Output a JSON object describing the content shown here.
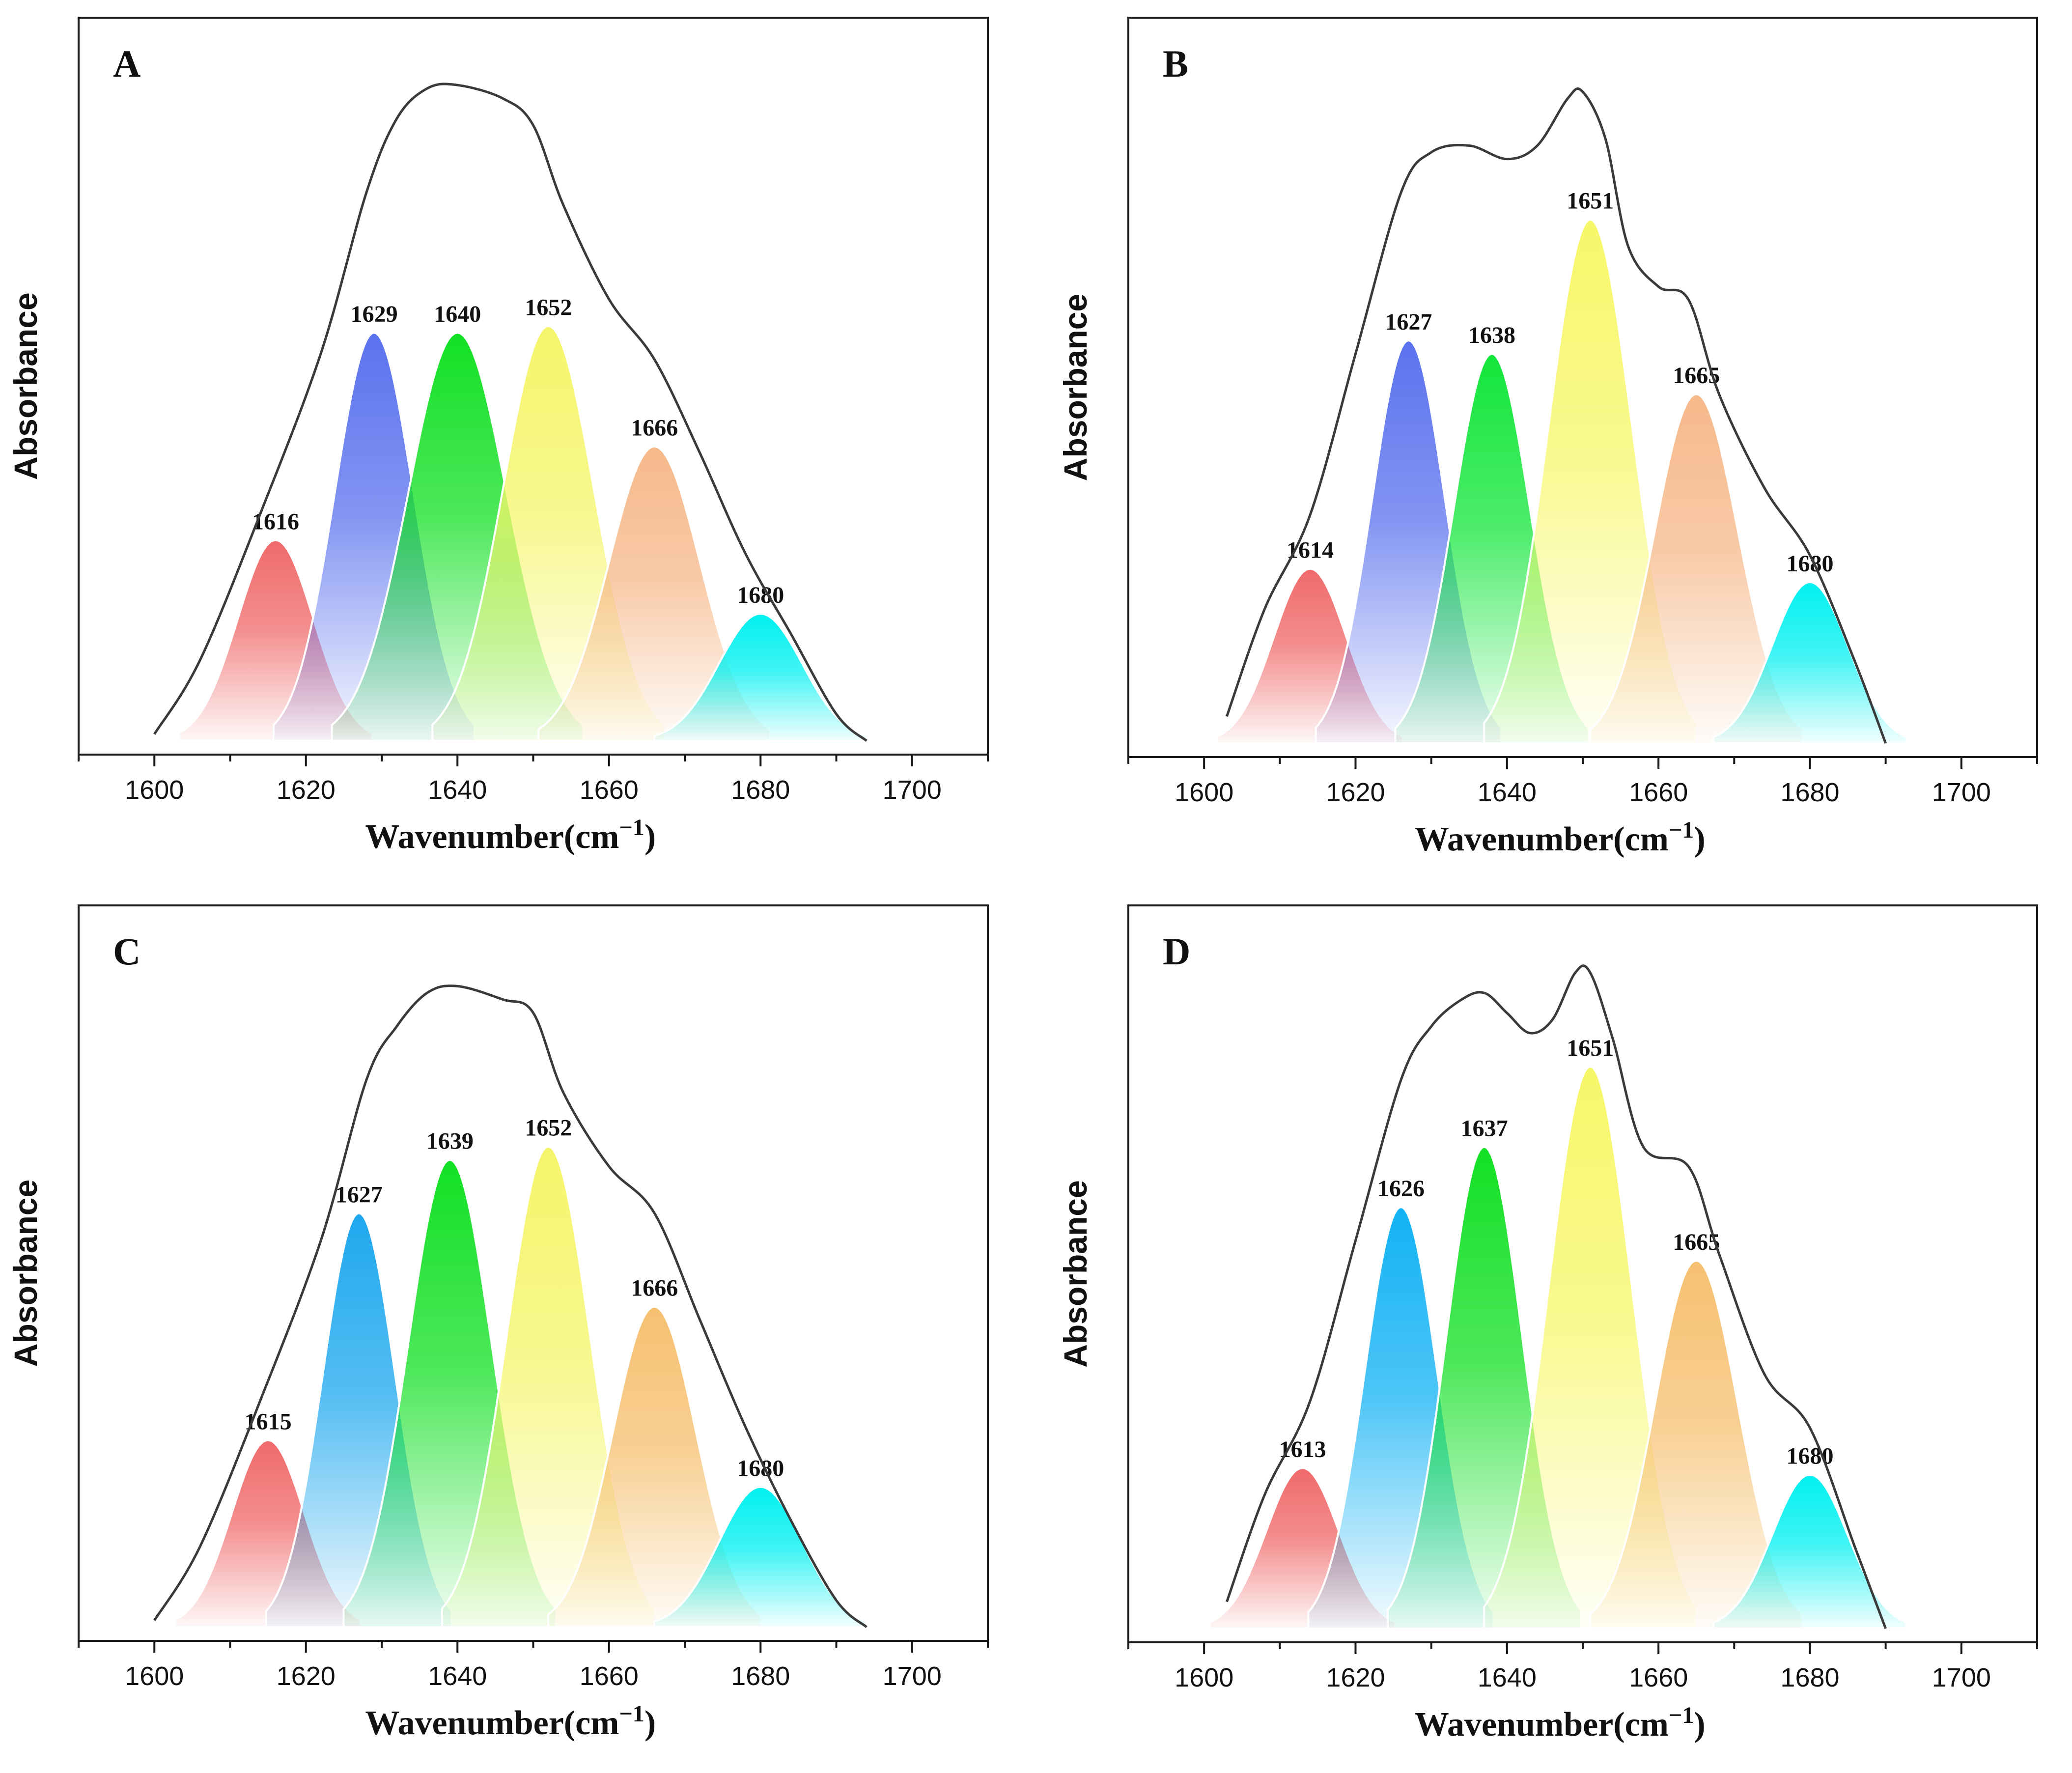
{
  "figure": {
    "xlabel": "Wavenumber(cm",
    "xlabel_sup": "−1",
    "xlabel_close": ")",
    "ylabel": "Absorbance"
  },
  "chart_data": [
    {
      "type": "area",
      "panel": "A",
      "xlabel": "Wavenumber(cm⁻¹)",
      "ylabel": "Absorbance",
      "xlim": [
        1590,
        1710
      ],
      "xticks": [
        1600,
        1620,
        1640,
        1660,
        1680,
        1700
      ],
      "ylim": [
        0,
        1.0
      ],
      "envelope": [
        [
          1600,
          0.01
        ],
        [
          1606,
          0.12
        ],
        [
          1614,
          0.34
        ],
        [
          1622,
          0.58
        ],
        [
          1628,
          0.82
        ],
        [
          1632,
          0.93
        ],
        [
          1636,
          0.975
        ],
        [
          1640,
          0.98
        ],
        [
          1646,
          0.96
        ],
        [
          1650,
          0.92
        ],
        [
          1654,
          0.8
        ],
        [
          1660,
          0.66
        ],
        [
          1666,
          0.57
        ],
        [
          1672,
          0.43
        ],
        [
          1678,
          0.28
        ],
        [
          1684,
          0.16
        ],
        [
          1690,
          0.04
        ],
        [
          1694,
          0.0
        ]
      ],
      "bands": [
        {
          "label": "1616",
          "center": 1616,
          "height": 0.3,
          "width": 5.0,
          "color": "#f06a6a"
        },
        {
          "label": "1629",
          "center": 1629,
          "height": 0.61,
          "width": 5.2,
          "color": "#5a72ee"
        },
        {
          "label": "1640",
          "center": 1640,
          "height": 0.61,
          "width": 6.5,
          "color": "#12e024"
        },
        {
          "label": "1652",
          "center": 1652,
          "height": 0.62,
          "width": 6.0,
          "color": "#f5f56a"
        },
        {
          "label": "1666",
          "center": 1666,
          "height": 0.44,
          "width": 6.0,
          "color": "#f6b98a"
        },
        {
          "label": "1680",
          "center": 1680,
          "height": 0.19,
          "width": 5.5,
          "color": "#00f0f0"
        }
      ]
    },
    {
      "type": "area",
      "panel": "B",
      "xlabel": "Wavenumber(cm⁻¹)",
      "ylabel": "Absorbance",
      "xlim": [
        1590,
        1710
      ],
      "xticks": [
        1600,
        1620,
        1640,
        1660,
        1680,
        1700
      ],
      "ylim": [
        0,
        1.0
      ],
      "envelope": [
        [
          1603,
          0.04
        ],
        [
          1608,
          0.2
        ],
        [
          1614,
          0.34
        ],
        [
          1620,
          0.58
        ],
        [
          1626,
          0.82
        ],
        [
          1630,
          0.88
        ],
        [
          1635,
          0.89
        ],
        [
          1640,
          0.87
        ],
        [
          1644,
          0.89
        ],
        [
          1648,
          0.96
        ],
        [
          1650,
          0.97
        ],
        [
          1653,
          0.9
        ],
        [
          1656,
          0.74
        ],
        [
          1660,
          0.68
        ],
        [
          1664,
          0.66
        ],
        [
          1668,
          0.52
        ],
        [
          1674,
          0.38
        ],
        [
          1680,
          0.28
        ],
        [
          1686,
          0.12
        ],
        [
          1690,
          0.0
        ]
      ],
      "bands": [
        {
          "label": "1614",
          "center": 1614,
          "height": 0.26,
          "width": 4.8,
          "color": "#f06a6a"
        },
        {
          "label": "1627",
          "center": 1627,
          "height": 0.6,
          "width": 4.8,
          "color": "#5a72ee"
        },
        {
          "label": "1638",
          "center": 1638,
          "height": 0.58,
          "width": 5.0,
          "color": "#12e63a"
        },
        {
          "label": "1651",
          "center": 1651,
          "height": 0.78,
          "width": 5.5,
          "color": "#f7f76a"
        },
        {
          "label": "1665",
          "center": 1665,
          "height": 0.52,
          "width": 5.5,
          "color": "#f6b98a"
        },
        {
          "label": "1680",
          "center": 1680,
          "height": 0.24,
          "width": 5.0,
          "color": "#00f0f0"
        }
      ]
    },
    {
      "type": "area",
      "panel": "C",
      "xlabel": "Wavenumber(cm⁻¹)",
      "ylabel": "Absorbance",
      "xlim": [
        1590,
        1710
      ],
      "xticks": [
        1600,
        1620,
        1640,
        1660,
        1680,
        1700
      ],
      "ylim": [
        0,
        1.0
      ],
      "envelope": [
        [
          1600,
          0.01
        ],
        [
          1606,
          0.12
        ],
        [
          1614,
          0.34
        ],
        [
          1622,
          0.58
        ],
        [
          1628,
          0.82
        ],
        [
          1632,
          0.9
        ],
        [
          1636,
          0.95
        ],
        [
          1640,
          0.96
        ],
        [
          1646,
          0.94
        ],
        [
          1650,
          0.92
        ],
        [
          1654,
          0.8
        ],
        [
          1660,
          0.69
        ],
        [
          1666,
          0.62
        ],
        [
          1672,
          0.46
        ],
        [
          1678,
          0.3
        ],
        [
          1684,
          0.16
        ],
        [
          1690,
          0.04
        ],
        [
          1694,
          0.0
        ]
      ],
      "bands": [
        {
          "label": "1615",
          "center": 1615,
          "height": 0.28,
          "width": 4.8,
          "color": "#f06a6a"
        },
        {
          "label": "1627",
          "center": 1627,
          "height": 0.62,
          "width": 4.8,
          "color": "#1ea8ee"
        },
        {
          "label": "1639",
          "center": 1639,
          "height": 0.7,
          "width": 5.5,
          "color": "#12e024"
        },
        {
          "label": "1652",
          "center": 1652,
          "height": 0.72,
          "width": 5.5,
          "color": "#f5f56a"
        },
        {
          "label": "1666",
          "center": 1666,
          "height": 0.48,
          "width": 5.5,
          "color": "#f6c070"
        },
        {
          "label": "1680",
          "center": 1680,
          "height": 0.21,
          "width": 5.5,
          "color": "#00f0f0"
        }
      ]
    },
    {
      "type": "area",
      "panel": "D",
      "xlabel": "Wavenumber(cm⁻¹)",
      "ylabel": "Absorbance",
      "xlim": [
        1590,
        1710
      ],
      "xticks": [
        1600,
        1620,
        1640,
        1660,
        1680,
        1700
      ],
      "ylim": [
        0,
        1.0
      ],
      "envelope": [
        [
          1603,
          0.04
        ],
        [
          1608,
          0.2
        ],
        [
          1614,
          0.34
        ],
        [
          1620,
          0.58
        ],
        [
          1626,
          0.82
        ],
        [
          1630,
          0.9
        ],
        [
          1634,
          0.94
        ],
        [
          1637,
          0.95
        ],
        [
          1640,
          0.92
        ],
        [
          1643,
          0.89
        ],
        [
          1646,
          0.91
        ],
        [
          1649,
          0.98
        ],
        [
          1651,
          0.98
        ],
        [
          1654,
          0.88
        ],
        [
          1658,
          0.72
        ],
        [
          1664,
          0.69
        ],
        [
          1668,
          0.56
        ],
        [
          1674,
          0.38
        ],
        [
          1680,
          0.3
        ],
        [
          1686,
          0.12
        ],
        [
          1690,
          0.0
        ]
      ],
      "bands": [
        {
          "label": "1613",
          "center": 1613,
          "height": 0.24,
          "width": 4.8,
          "color": "#f06a6a"
        },
        {
          "label": "1626",
          "center": 1626,
          "height": 0.63,
          "width": 4.8,
          "color": "#12b2f4"
        },
        {
          "label": "1637",
          "center": 1637,
          "height": 0.72,
          "width": 5.0,
          "color": "#12e024"
        },
        {
          "label": "1651",
          "center": 1651,
          "height": 0.84,
          "width": 5.5,
          "color": "#f7f76a"
        },
        {
          "label": "1665",
          "center": 1665,
          "height": 0.55,
          "width": 5.5,
          "color": "#f6c070"
        },
        {
          "label": "1680",
          "center": 1680,
          "height": 0.23,
          "width": 5.0,
          "color": "#00f0f0"
        }
      ]
    }
  ]
}
